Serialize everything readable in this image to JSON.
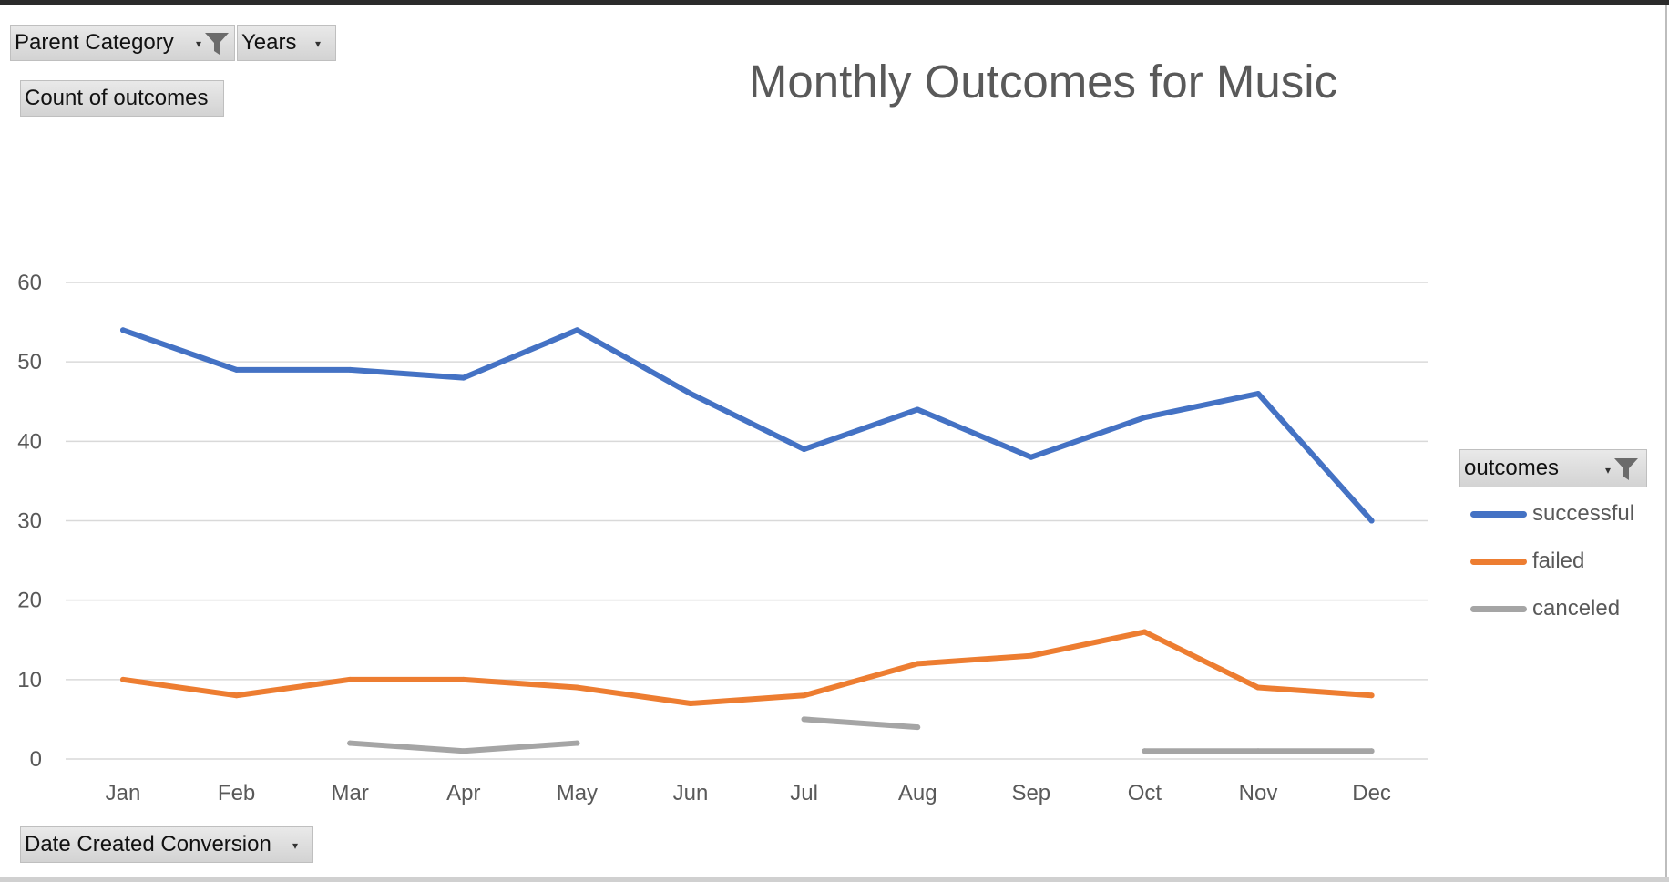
{
  "colors": {
    "successful": "#4472C4",
    "failed": "#ED7D31",
    "canceled": "#A5A5A5",
    "gridline": "#d9d9d9"
  },
  "filters": {
    "parent_category": {
      "label": "Parent Category",
      "icon": "filter-icon",
      "dropdown": "chevron-down-icon"
    },
    "years": {
      "label": "Years",
      "dropdown": "chevron-down-icon"
    },
    "value_field": {
      "label": "Count of outcomes"
    },
    "axis_field": {
      "label": "Date Created Conversion",
      "dropdown": "chevron-down-icon"
    },
    "legend_field": {
      "label": "outcomes",
      "icon": "filter-icon",
      "dropdown": "chevron-down-icon"
    }
  },
  "chart_data": {
    "type": "line",
    "title": "Monthly Outcomes for Music",
    "xlabel": "",
    "ylabel": "",
    "categories": [
      "Jan",
      "Feb",
      "Mar",
      "Apr",
      "May",
      "Jun",
      "Jul",
      "Aug",
      "Sep",
      "Oct",
      "Nov",
      "Dec"
    ],
    "ylim": [
      0,
      60
    ],
    "yticks": [
      0,
      10,
      20,
      30,
      40,
      50,
      60
    ],
    "grid": true,
    "legend_position": "right",
    "series": [
      {
        "name": "successful",
        "values": [
          54,
          49,
          49,
          48,
          54,
          46,
          39,
          44,
          38,
          43,
          46,
          30
        ]
      },
      {
        "name": "failed",
        "values": [
          10,
          8,
          10,
          10,
          9,
          7,
          8,
          12,
          13,
          16,
          9,
          8
        ]
      },
      {
        "name": "canceled",
        "values": [
          null,
          null,
          2,
          1,
          2,
          null,
          5,
          4,
          null,
          1,
          1,
          1
        ]
      }
    ]
  }
}
